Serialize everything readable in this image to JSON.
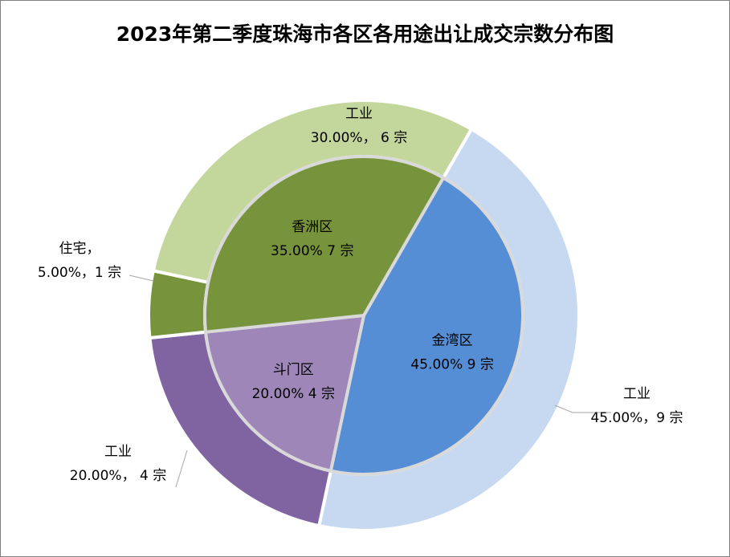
{
  "chart_data": {
    "type": "pie",
    "title": "2023年第二季度珠海市各区各用途出让成交宗数分布图",
    "inner": [
      {
        "name": "金湾区",
        "value": 9,
        "percent_label": "45.00% 9 宗",
        "color": "#558ed5"
      },
      {
        "name": "斗门区",
        "value": 4,
        "percent_label": "20.00% 4 宗",
        "color": "#9e86b8"
      },
      {
        "name": "香洲区",
        "value": 7,
        "percent_label": "35.00% 7 宗",
        "color": "#77933c"
      }
    ],
    "outer": [
      {
        "name": "工业",
        "district": "金湾区",
        "value": 9,
        "value_label": "45.00%，9 宗",
        "color": "#c6d9f1"
      },
      {
        "name": "工业",
        "district": "斗门区",
        "value": 4,
        "value_label": "20.00%， 4 宗",
        "color": "#8064a2"
      },
      {
        "name": "住宅，",
        "district": "香洲区",
        "value": 1,
        "value_label": "5.00%，1 宗",
        "color": "#77933c"
      },
      {
        "name": "工业",
        "district": "香洲区",
        "value": 6,
        "value_label": "30.00%， 6 宗",
        "color": "#c3d69b"
      }
    ]
  }
}
